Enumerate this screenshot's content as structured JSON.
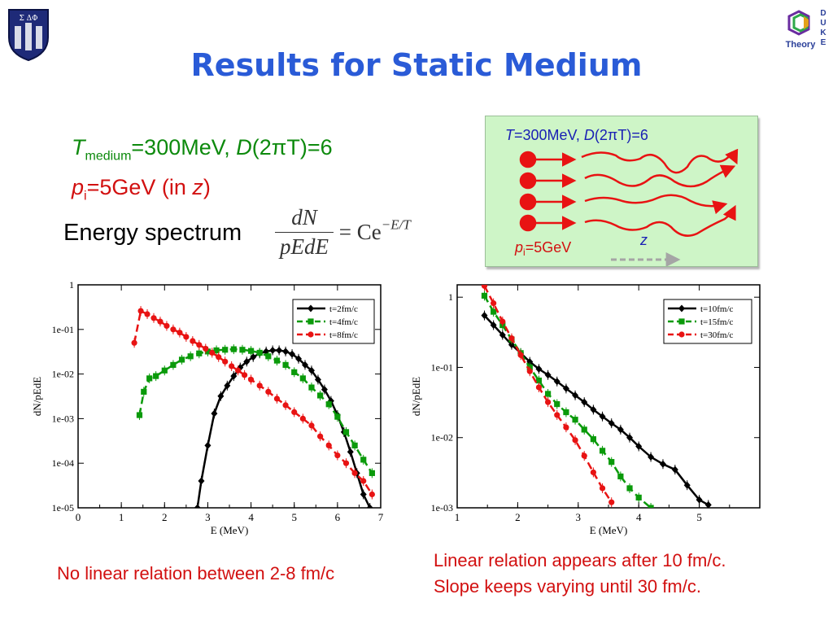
{
  "title": "Results for Static Medium",
  "header": {
    "logo_left_text": "Σ ΔΦ",
    "logo_right_lines": [
      "D",
      "U",
      "K",
      "E"
    ],
    "logo_right_caption": "Theory"
  },
  "params": {
    "line1_T": "T",
    "line1_sub": "medium",
    "line1_rest": "=300MeV, ",
    "line1_D": "D",
    "line1_paren": "(2πT)=6",
    "line2_p": "p",
    "line2_sub": "i",
    "line2_rest": "=5GeV (in ",
    "line2_z": "z",
    "line2_close": ")"
  },
  "spectrum": {
    "label": "Energy spectrum",
    "numerator": "dN",
    "denominator": "pEdE",
    "rhs": "= Ce",
    "exponent": "−E/T"
  },
  "inset": {
    "title_T": "T",
    "title_rest": "=300MeV, ",
    "title_D": "D",
    "title_paren": "(2πT)=6",
    "p_label": "p",
    "p_sub": "i",
    "p_rest": "=5GeV",
    "z_label": "z",
    "colors": {
      "particle": "#e81313",
      "background": "#cef5c7",
      "arrow": "#a5a5a5"
    }
  },
  "captions": {
    "left": "No linear relation between 2-8 fm/c",
    "right_line1": "Linear relation appears after 10 fm/c.",
    "right_line2": "Slope keeps varying until 30 fm/c."
  },
  "chart_data": [
    {
      "type": "line",
      "xlabel": "E (MeV)",
      "ylabel": "dN/pEdE",
      "xlim": [
        0,
        7
      ],
      "ylim": [
        1e-05,
        1
      ],
      "log_y": true,
      "xticks": [
        "0",
        "1",
        "2",
        "3",
        "4",
        "5",
        "6",
        "7"
      ],
      "yticks": [
        "1e-05",
        "1e-04",
        "1e-03",
        "1e-02",
        "1e-01",
        "1"
      ],
      "legend_position": "top-right",
      "series": [
        {
          "name": "t=2fm/c",
          "color": "#000000",
          "marker": "diamond",
          "dash": "solid",
          "x": [
            2.76,
            2.85,
            3.0,
            3.15,
            3.3,
            3.45,
            3.6,
            3.75,
            3.9,
            4.05,
            4.2,
            4.35,
            4.5,
            4.65,
            4.8,
            4.95,
            5.1,
            5.25,
            5.4,
            5.55,
            5.7,
            5.85,
            6.0,
            6.15,
            6.3,
            6.45,
            6.6,
            6.75
          ],
          "y": [
            1e-05,
            4e-05,
            0.00025,
            0.0013,
            0.0032,
            0.0055,
            0.009,
            0.014,
            0.019,
            0.024,
            0.029,
            0.032,
            0.034,
            0.034,
            0.032,
            0.028,
            0.022,
            0.016,
            0.012,
            0.0075,
            0.0045,
            0.0025,
            0.0012,
            0.0005,
            0.00018,
            6e-05,
            2e-05,
            1e-05
          ]
        },
        {
          "name": "t=4fm/c",
          "color": "#0a9a0a",
          "marker": "square",
          "dash": "dashed",
          "x": [
            1.42,
            1.52,
            1.65,
            1.8,
            2.0,
            2.2,
            2.4,
            2.6,
            2.8,
            3.0,
            3.2,
            3.4,
            3.6,
            3.8,
            4.0,
            4.2,
            4.4,
            4.6,
            4.8,
            5.0,
            5.2,
            5.4,
            5.6,
            5.8,
            6.0,
            6.2,
            6.4,
            6.6,
            6.8
          ],
          "y": [
            0.0012,
            0.004,
            0.008,
            0.009,
            0.012,
            0.016,
            0.021,
            0.025,
            0.029,
            0.032,
            0.034,
            0.035,
            0.036,
            0.035,
            0.033,
            0.03,
            0.025,
            0.02,
            0.016,
            0.011,
            0.008,
            0.005,
            0.0033,
            0.0021,
            0.0011,
            0.0005,
            0.00025,
            0.00012,
            6e-05
          ]
        },
        {
          "name": "t=8fm/c",
          "color": "#e81313",
          "marker": "circle",
          "dash": "dashed",
          "x": [
            1.3,
            1.45,
            1.6,
            1.75,
            1.9,
            2.05,
            2.2,
            2.35,
            2.5,
            2.65,
            2.8,
            2.95,
            3.1,
            3.25,
            3.4,
            3.55,
            3.7,
            3.85,
            4.0,
            4.2,
            4.4,
            4.6,
            4.8,
            5.0,
            5.2,
            5.4,
            5.6,
            5.8,
            6.0,
            6.2,
            6.4,
            6.6,
            6.8
          ],
          "y": [
            0.05,
            0.26,
            0.22,
            0.18,
            0.15,
            0.12,
            0.1,
            0.085,
            0.068,
            0.055,
            0.045,
            0.037,
            0.03,
            0.024,
            0.019,
            0.015,
            0.012,
            0.0095,
            0.0075,
            0.0055,
            0.004,
            0.0028,
            0.002,
            0.0014,
            0.001,
            0.0007,
            0.0004,
            0.00025,
            0.00015,
            0.0001,
            6e-05,
            4e-05,
            2e-05
          ]
        }
      ]
    },
    {
      "type": "line",
      "xlabel": "E (MeV)",
      "ylabel": "dN/pEdE",
      "xlim": [
        1,
        6
      ],
      "ylim": [
        0.001,
        1.5
      ],
      "log_y": true,
      "xticks": [
        "1",
        "2",
        "3",
        "4",
        "5"
      ],
      "yticks": [
        "1e-03",
        "1e-02",
        "1e-01",
        "1"
      ],
      "legend_position": "top-right",
      "series": [
        {
          "name": "t=10fm/c",
          "color": "#000000",
          "marker": "diamond",
          "dash": "solid",
          "x": [
            1.45,
            1.6,
            1.75,
            1.9,
            2.05,
            2.2,
            2.35,
            2.5,
            2.65,
            2.8,
            2.95,
            3.1,
            3.25,
            3.4,
            3.55,
            3.7,
            3.85,
            4.0,
            4.2,
            4.4,
            4.6,
            4.8,
            5.0,
            5.15
          ],
          "y": [
            0.55,
            0.4,
            0.29,
            0.21,
            0.16,
            0.12,
            0.095,
            0.078,
            0.063,
            0.05,
            0.04,
            0.032,
            0.025,
            0.02,
            0.016,
            0.013,
            0.01,
            0.0075,
            0.0053,
            0.0042,
            0.0035,
            0.0021,
            0.0013,
            0.0011
          ]
        },
        {
          "name": "t=15fm/c",
          "color": "#0a9a0a",
          "marker": "square",
          "dash": "dashed",
          "x": [
            1.45,
            1.6,
            1.75,
            1.9,
            2.05,
            2.2,
            2.35,
            2.5,
            2.65,
            2.8,
            2.95,
            3.1,
            3.25,
            3.4,
            3.55,
            3.7,
            3.85,
            4.0,
            4.2
          ],
          "y": [
            1.05,
            0.62,
            0.4,
            0.25,
            0.16,
            0.1,
            0.065,
            0.042,
            0.03,
            0.023,
            0.018,
            0.013,
            0.0095,
            0.0065,
            0.0045,
            0.0028,
            0.0019,
            0.0014,
            0.001
          ]
        },
        {
          "name": "t=30fm/c",
          "color": "#e81313",
          "marker": "circle",
          "dash": "dashed",
          "x": [
            1.45,
            1.6,
            1.75,
            1.9,
            2.05,
            2.2,
            2.35,
            2.5,
            2.65,
            2.8,
            2.95,
            3.1,
            3.25,
            3.4,
            3.55
          ],
          "y": [
            1.45,
            0.82,
            0.45,
            0.26,
            0.15,
            0.088,
            0.052,
            0.032,
            0.021,
            0.014,
            0.0092,
            0.0055,
            0.0032,
            0.0019,
            0.0012
          ]
        }
      ]
    }
  ]
}
